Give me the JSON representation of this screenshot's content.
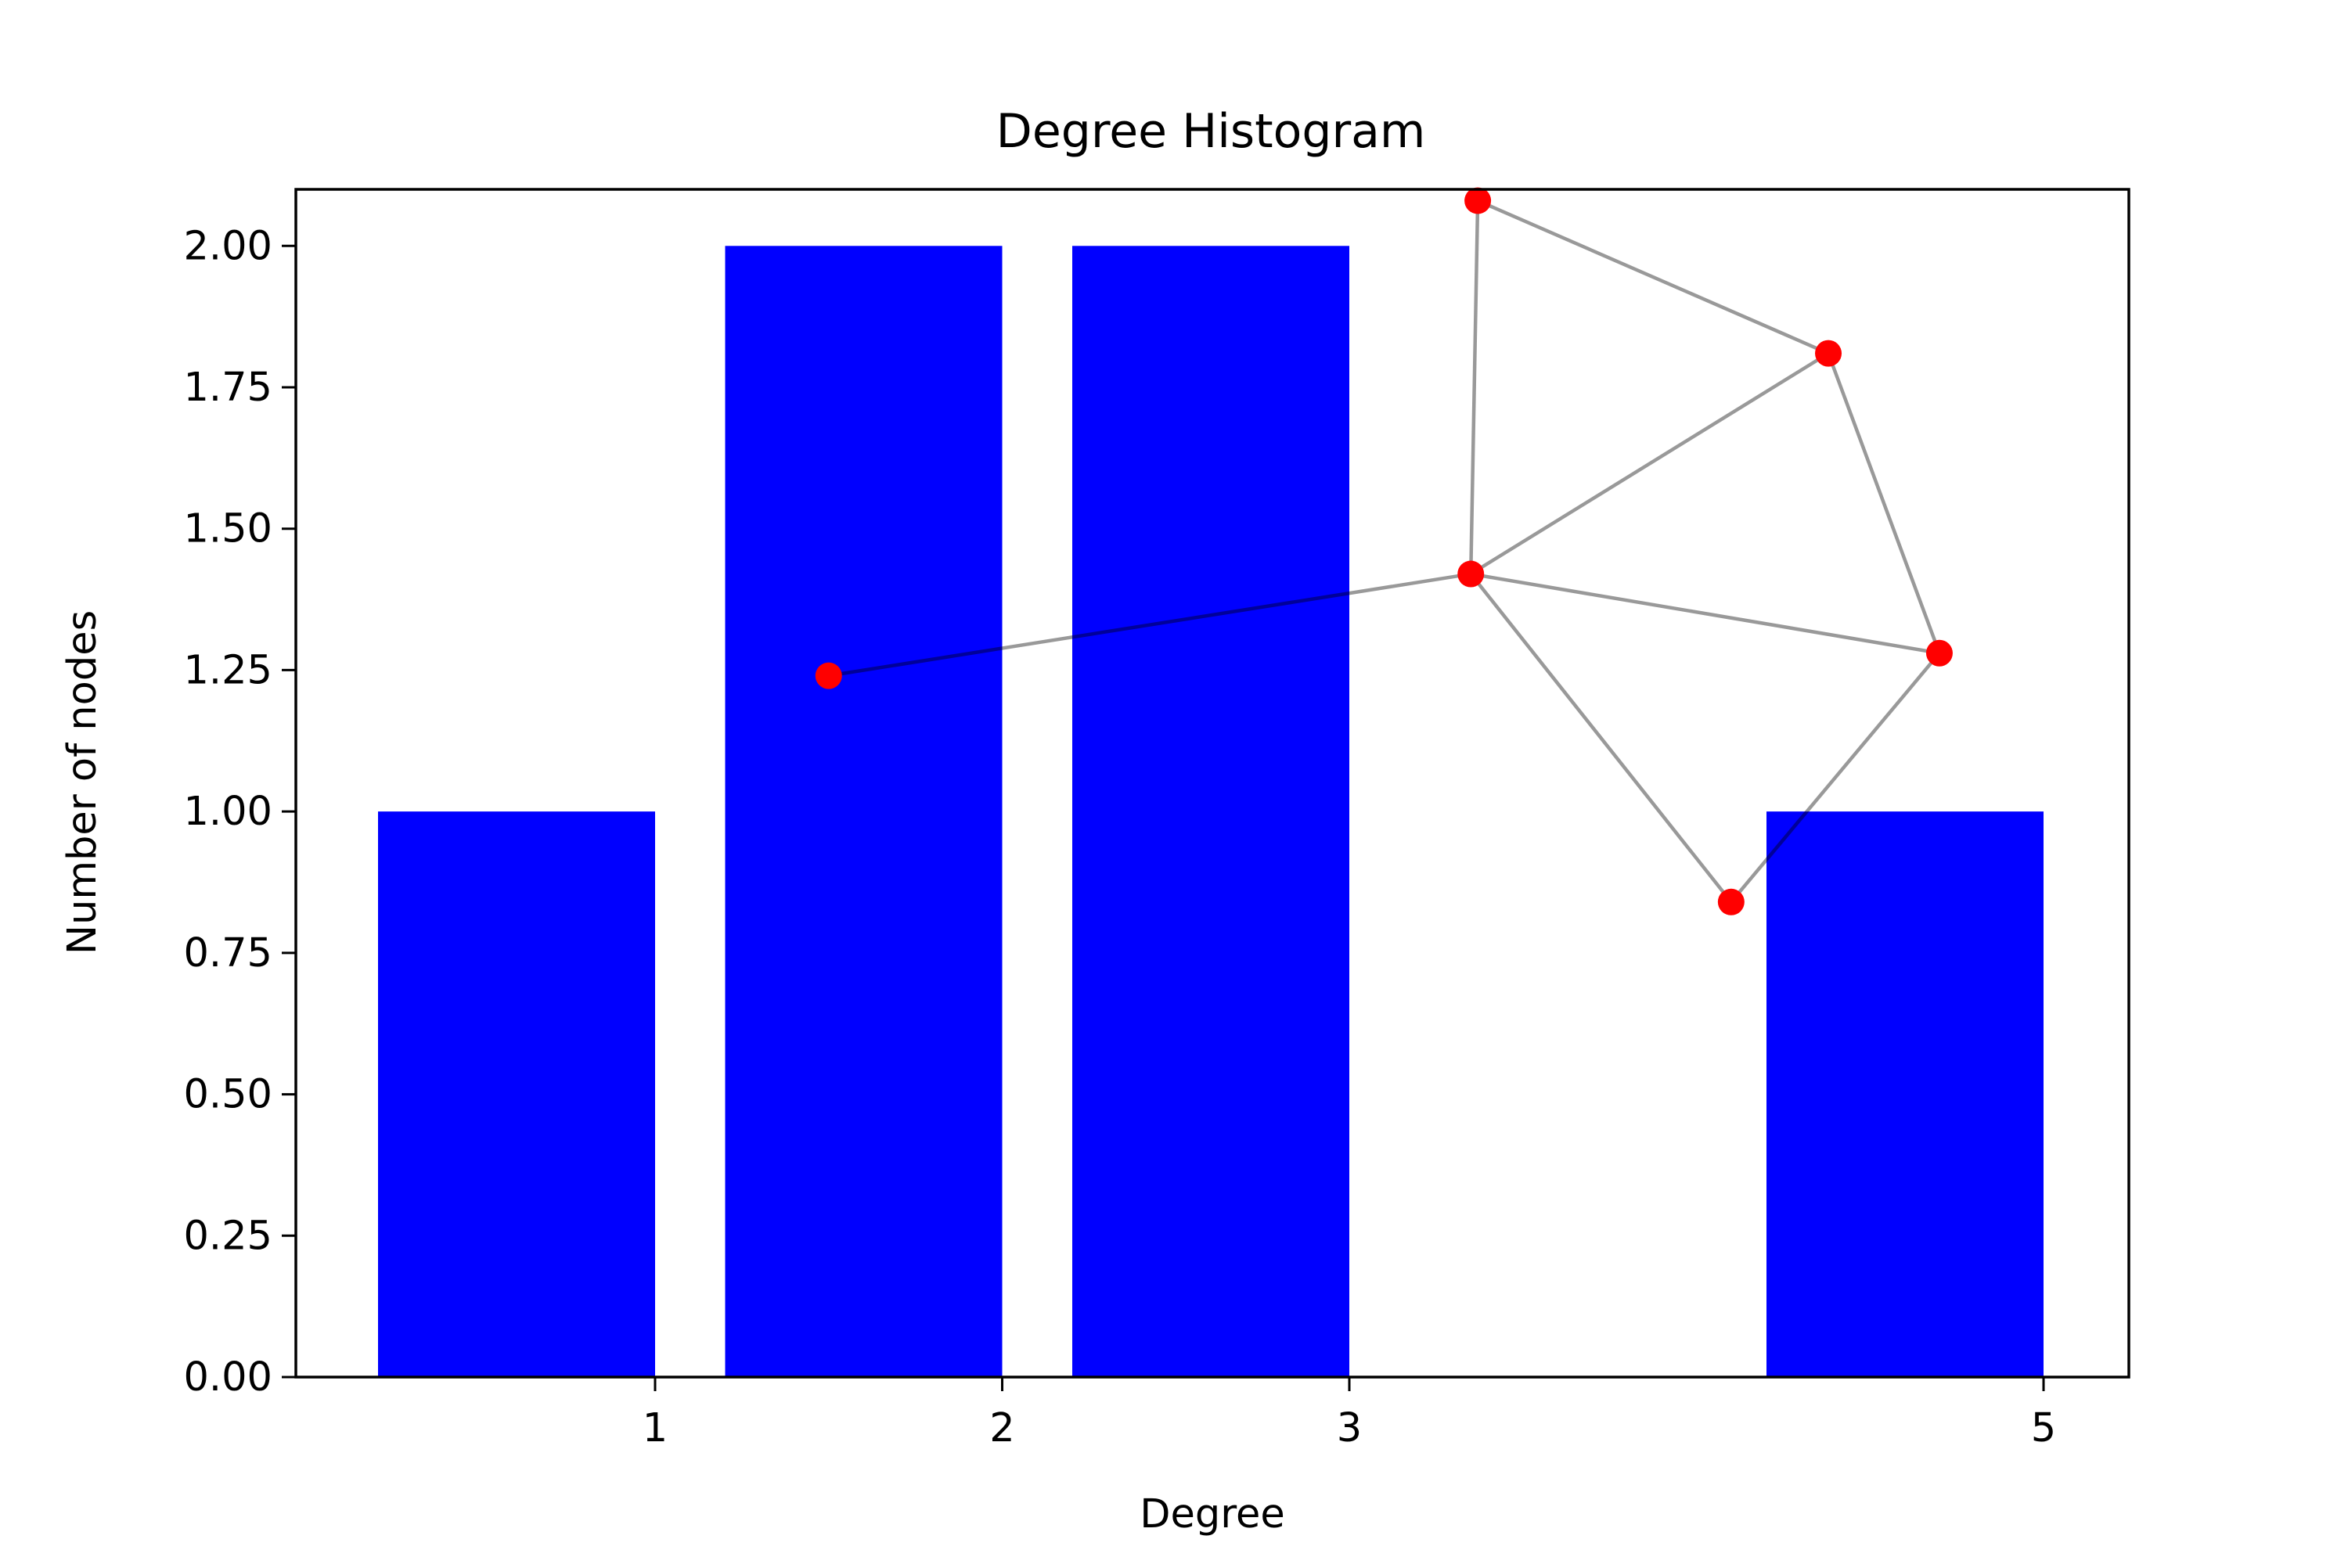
{
  "chart_data": {
    "type": "bar",
    "title": "Degree Histogram",
    "xlabel": "Degree",
    "ylabel": "Number of nodes",
    "bars": [
      {
        "degree": 1,
        "count": 1
      },
      {
        "degree": 2,
        "count": 2
      },
      {
        "degree": 3,
        "count": 2
      },
      {
        "degree": 5,
        "count": 1
      }
    ],
    "x_ticks": [
      "1",
      "2",
      "3",
      "5"
    ],
    "y_ticks": [
      "0.00",
      "0.25",
      "0.50",
      "0.75",
      "1.00",
      "1.25",
      "1.50",
      "1.75",
      "2.00"
    ],
    "ylim": [
      0,
      2.1
    ],
    "grid": false,
    "bar_color": "#0000ff",
    "inset_graph": {
      "nodes": [
        {
          "id": "n0",
          "x": 1.5,
          "y": 1.24
        },
        {
          "id": "n1",
          "x": 3.35,
          "y": 1.42
        },
        {
          "id": "n2",
          "x": 3.37,
          "y": 2.08
        },
        {
          "id": "n3",
          "x": 4.38,
          "y": 1.81
        },
        {
          "id": "n4",
          "x": 4.7,
          "y": 1.28
        },
        {
          "id": "n5",
          "x": 4.1,
          "y": 0.84
        }
      ],
      "edges": [
        [
          "n0",
          "n1"
        ],
        [
          "n1",
          "n2"
        ],
        [
          "n1",
          "n3"
        ],
        [
          "n1",
          "n4"
        ],
        [
          "n1",
          "n5"
        ],
        [
          "n2",
          "n3"
        ],
        [
          "n3",
          "n4"
        ],
        [
          "n4",
          "n5"
        ]
      ],
      "node_color": "#ff0000",
      "edge_color": "#000000",
      "edge_opacity": 0.4
    }
  }
}
